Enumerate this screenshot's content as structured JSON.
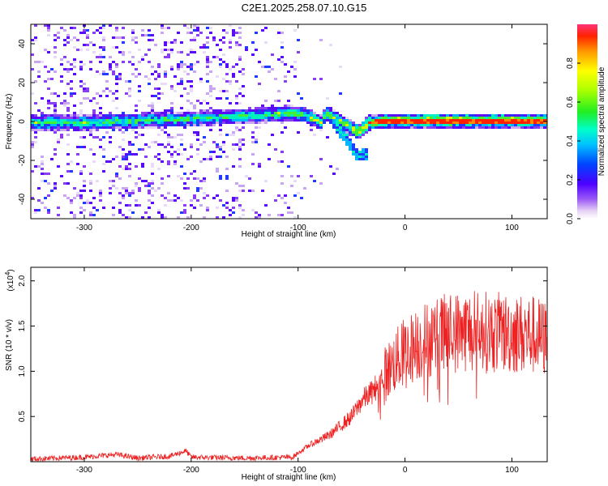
{
  "chart_data": [
    {
      "type": "heatmap",
      "title": "C2E1.2025.258.07.10.G15",
      "xlabel": "Height of straight line (km)",
      "ylabel": "Frequency (Hz)",
      "xlim": [
        -350,
        133
      ],
      "ylim": [
        -50,
        50
      ],
      "xticks": [
        -300,
        -200,
        -100,
        0,
        100
      ],
      "yticks": [
        -40,
        -20,
        0,
        20,
        40
      ],
      "colorbar": {
        "label": "Normalized spectral amplitude",
        "range": [
          0,
          1
        ],
        "ticks": [
          "0.0",
          "0.2",
          "0.4",
          "0.6",
          "0.8"
        ],
        "tick_values": [
          0.0,
          0.2,
          0.4,
          0.6,
          0.8
        ]
      },
      "ridge": {
        "description_points_x": [
          -345,
          -300,
          -250,
          -200,
          -170,
          -130,
          -110,
          -95,
          -80,
          -75,
          -60,
          -45,
          -35,
          -20,
          0,
          50,
          133
        ],
        "description_points_y": [
          0,
          0,
          1,
          2,
          3,
          4,
          5,
          4,
          0,
          5,
          0,
          -5,
          0,
          1,
          1,
          1,
          1
        ]
      }
    },
    {
      "type": "line",
      "xlabel": "Height of straight line (km)",
      "ylabel": "SNR (10 * v/v)",
      "y_multiplier_label": "(x10",
      "y_multiplier_exp": "4",
      "y_multiplier_close": ")",
      "xlim": [
        -350,
        133
      ],
      "ylim": [
        0,
        2.15
      ],
      "xticks": [
        -300,
        -200,
        -100,
        0,
        100
      ],
      "yticks": [
        0.5,
        1.0,
        1.5,
        2.0
      ],
      "ytick_labels": [
        "0.5",
        "1.0",
        "1.5",
        "2.0"
      ],
      "series": [
        {
          "name": "SNR",
          "color": "#ee2222",
          "envelope_x": [
            -350,
            -300,
            -270,
            -250,
            -220,
            -205,
            -200,
            -150,
            -105,
            -90,
            -70,
            -50,
            -40,
            -30,
            -20,
            -10,
            0,
            20,
            40,
            60,
            80,
            100,
            120,
            133
          ],
          "envelope_y": [
            0.03,
            0.05,
            0.08,
            0.04,
            0.06,
            0.12,
            0.05,
            0.04,
            0.05,
            0.18,
            0.3,
            0.5,
            0.68,
            0.78,
            0.95,
            1.1,
            1.22,
            1.35,
            1.42,
            1.45,
            1.43,
            1.42,
            1.4,
            1.35
          ]
        }
      ]
    }
  ]
}
